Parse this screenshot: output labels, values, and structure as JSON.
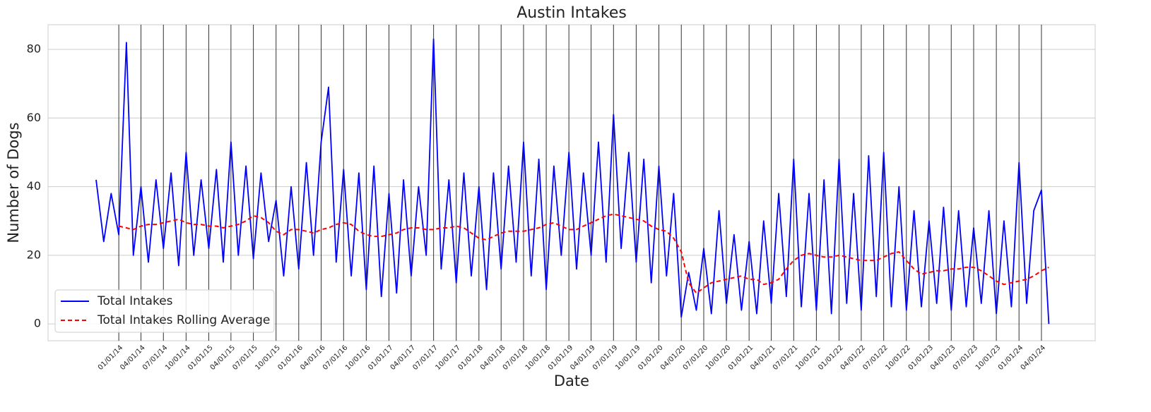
{
  "chart_data": {
    "type": "line",
    "title": "Austin Intakes",
    "xlabel": "Date",
    "ylabel": "Number of Dogs",
    "x": [
      "10/01/13",
      "11/01/13",
      "12/01/13",
      "01/01/14",
      "02/01/14",
      "03/01/14",
      "04/01/14",
      "05/01/14",
      "06/01/14",
      "07/01/14",
      "08/01/14",
      "09/01/14",
      "10/01/14",
      "11/01/14",
      "12/01/14",
      "01/01/15",
      "02/01/15",
      "03/01/15",
      "04/01/15",
      "05/01/15",
      "06/01/15",
      "07/01/15",
      "08/01/15",
      "09/01/15",
      "10/01/15",
      "11/01/15",
      "12/01/15",
      "01/01/16",
      "02/01/16",
      "03/01/16",
      "04/01/16",
      "05/01/16",
      "06/01/16",
      "07/01/16",
      "08/01/16",
      "09/01/16",
      "10/01/16",
      "11/01/16",
      "12/01/16",
      "01/01/17",
      "02/01/17",
      "03/01/17",
      "04/01/17",
      "05/01/17",
      "06/01/17",
      "07/01/17",
      "08/01/17",
      "09/01/17",
      "10/01/17",
      "11/01/17",
      "12/01/17",
      "01/01/18",
      "02/01/18",
      "03/01/18",
      "04/01/18",
      "05/01/18",
      "06/01/18",
      "07/01/18",
      "08/01/18",
      "09/01/18",
      "10/01/18",
      "11/01/18",
      "12/01/18",
      "01/01/19",
      "02/01/19",
      "03/01/19",
      "04/01/19",
      "05/01/19",
      "06/01/19",
      "07/01/19",
      "08/01/19",
      "09/01/19",
      "10/01/19",
      "11/01/19",
      "12/01/19",
      "01/01/20",
      "02/01/20",
      "03/01/20",
      "04/01/20",
      "05/01/20",
      "06/01/20",
      "07/01/20",
      "08/01/20",
      "09/01/20",
      "10/01/20",
      "11/01/20",
      "12/01/20",
      "01/01/21",
      "02/01/21",
      "03/01/21",
      "04/01/21",
      "05/01/21",
      "06/01/21",
      "07/01/21",
      "08/01/21",
      "09/01/21",
      "10/01/21",
      "11/01/21",
      "12/01/21",
      "01/01/22",
      "02/01/22",
      "03/01/22",
      "04/01/22",
      "05/01/22",
      "06/01/22",
      "07/01/22",
      "08/01/22",
      "09/01/22",
      "10/01/22",
      "11/01/22",
      "12/01/22",
      "01/01/23",
      "02/01/23",
      "03/01/23",
      "04/01/23",
      "05/01/23",
      "06/01/23",
      "07/01/23",
      "08/01/23",
      "09/01/23",
      "10/01/23",
      "11/01/23",
      "12/01/23",
      "01/01/24",
      "02/01/24",
      "03/01/24",
      "04/01/24",
      "05/01/24"
    ],
    "series": [
      {
        "name": "Total Intakes",
        "color": "#0000ff",
        "dashed": false,
        "values": [
          42,
          24,
          38,
          26,
          82,
          20,
          40,
          18,
          42,
          22,
          44,
          17,
          50,
          20,
          42,
          22,
          45,
          18,
          53,
          20,
          46,
          19,
          44,
          24,
          36,
          14,
          40,
          16,
          47,
          20,
          53,
          69,
          18,
          45,
          14,
          44,
          10,
          46,
          8,
          38,
          9,
          42,
          14,
          40,
          20,
          83,
          16,
          42,
          12,
          44,
          14,
          40,
          10,
          44,
          16,
          46,
          18,
          53,
          14,
          48,
          10,
          46,
          20,
          50,
          16,
          44,
          20,
          53,
          18,
          61,
          22,
          50,
          18,
          48,
          12,
          46,
          14,
          38,
          2,
          15,
          4,
          22,
          3,
          33,
          6,
          26,
          4,
          24,
          3,
          30,
          6,
          38,
          8,
          48,
          5,
          38,
          4,
          42,
          3,
          48,
          6,
          38,
          4,
          49,
          8,
          50,
          5,
          40,
          4,
          33,
          5,
          30,
          6,
          34,
          4,
          33,
          5,
          28,
          6,
          33,
          3,
          30,
          5,
          47,
          6,
          33,
          39,
          0
        ]
      },
      {
        "name": "Total Intakes Rolling Average",
        "color": "#ff0000",
        "dashed": true,
        "values": [
          null,
          null,
          null,
          28.5,
          28,
          27.5,
          28.5,
          29,
          29,
          29.5,
          30,
          30.5,
          29.5,
          29,
          29,
          28.5,
          28.5,
          28,
          28.5,
          29,
          30,
          31.5,
          31,
          29.5,
          27,
          26,
          27.5,
          27.5,
          27,
          26.5,
          27.5,
          28,
          29,
          29.5,
          29,
          27,
          26,
          25.5,
          25.5,
          26,
          26.5,
          27.5,
          28,
          28,
          27.5,
          27.5,
          28,
          28,
          28.5,
          28,
          26.5,
          25,
          24.5,
          25.5,
          26.5,
          27,
          27,
          27,
          27.5,
          28,
          29,
          29.5,
          28.5,
          27.5,
          27.5,
          28.5,
          29.5,
          30.5,
          31.5,
          32,
          31.5,
          31,
          30.5,
          30,
          28.5,
          27.5,
          27,
          25,
          21,
          12,
          9,
          10.5,
          12,
          12.5,
          13,
          13.5,
          14,
          13,
          13,
          11.5,
          12,
          13,
          16,
          18.5,
          20,
          20.5,
          20,
          19.5,
          19.5,
          20,
          19.5,
          19,
          18.5,
          18.5,
          18.5,
          19.5,
          20.5,
          21,
          18.5,
          16,
          14.5,
          15,
          15.5,
          15.5,
          16,
          16,
          16.5,
          16.5,
          15.5,
          14,
          12.5,
          11.5,
          12,
          12.5,
          13,
          14,
          15.5,
          16.5
        ]
      }
    ],
    "xlim": [
      "03/20/13",
      "11/05/24"
    ],
    "xticks": [
      "01/01/14",
      "04/01/14",
      "07/01/14",
      "10/01/14",
      "01/01/15",
      "04/01/15",
      "07/01/15",
      "10/01/15",
      "01/01/16",
      "04/01/16",
      "07/01/16",
      "10/01/16",
      "01/01/17",
      "04/01/17",
      "07/01/17",
      "10/01/17",
      "01/01/18",
      "04/01/18",
      "07/01/18",
      "10/01/18",
      "01/01/19",
      "04/01/19",
      "07/01/19",
      "10/01/19",
      "01/01/20",
      "04/01/20",
      "07/01/20",
      "10/01/20",
      "01/01/21",
      "04/01/21",
      "07/01/21",
      "10/01/21",
      "01/01/22",
      "04/01/22",
      "07/01/22",
      "10/01/22",
      "01/01/23",
      "04/01/23",
      "07/01/23",
      "10/01/23",
      "01/01/24",
      "04/01/24"
    ],
    "ylim": [
      -4.9,
      87.2
    ],
    "yticks": [
      0,
      20,
      40,
      60,
      80
    ],
    "grid": true,
    "legend": "lower left"
  }
}
